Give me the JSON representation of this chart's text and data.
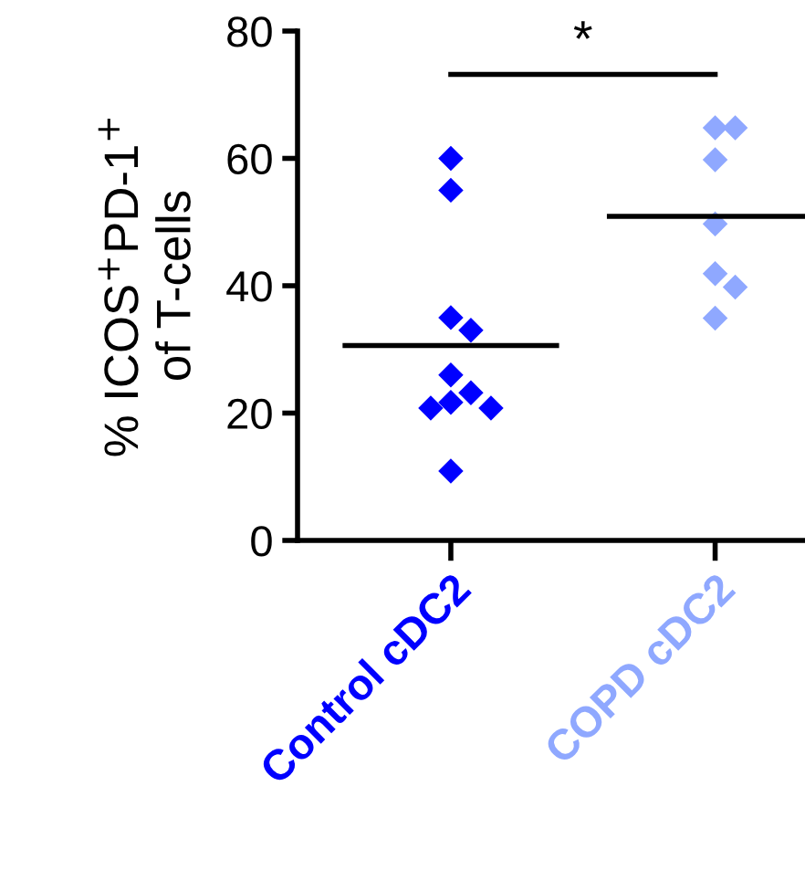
{
  "chart_data": {
    "type": "scatter",
    "ylabel": "% ICOS$^{+}$PD-1$^{+}$\nof T-cells",
    "categories": [
      "Control cDC2",
      "COPD cDC2"
    ],
    "ylim": [
      0,
      80
    ],
    "yticks": [
      0,
      20,
      40,
      60,
      80
    ],
    "grid": false,
    "legend": false,
    "marker": "diamond",
    "series": [
      {
        "color": "#0000ff",
        "x": [
          "Control cDC2",
          "Control cDC2",
          "Control cDC2",
          "Control cDC2",
          "Control cDC2",
          "Control cDC2",
          "Control cDC2",
          "Control cDC2",
          "Control cDC2",
          "Control cDC2"
        ],
        "values": [
          60,
          55,
          35,
          33,
          26,
          23.2,
          21.7,
          20.8,
          20.8,
          10.9
        ]
      },
      {
        "color": "#8fa8ff",
        "x": [
          "COPD cDC2",
          "COPD cDC2",
          "COPD cDC2",
          "COPD cDC2",
          "COPD cDC2",
          "COPD cDC2",
          "COPD cDC2"
        ],
        "values": [
          64.8,
          64.8,
          59.8,
          49.7,
          41.9,
          39.8,
          34.9
        ]
      }
    ],
    "ref_lines": [
      {
        "axis": "y",
        "value": 30.6,
        "color": "#000000"
      },
      {
        "axis": "y",
        "value": 50.9,
        "color": "#000000"
      }
    ],
    "annotations": [
      "*"
    ]
  }
}
